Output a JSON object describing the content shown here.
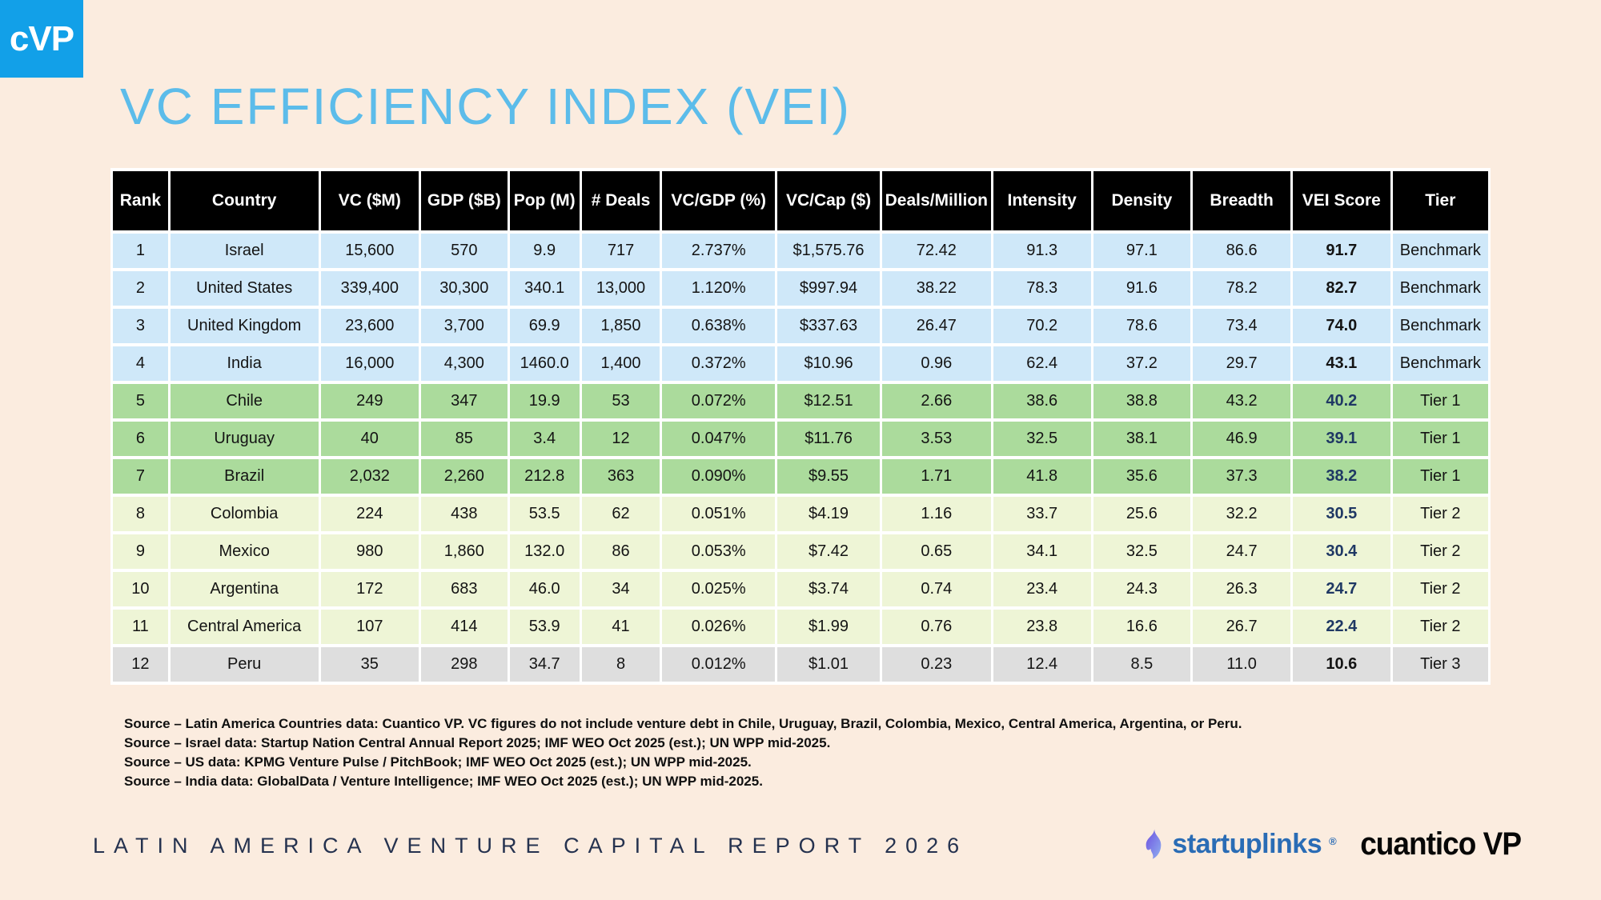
{
  "logo": {
    "text": "cVP"
  },
  "title": "VC EFFICIENCY INDEX (VEI)",
  "table": {
    "headers": [
      "Rank",
      "Country",
      "VC ($M)",
      "GDP ($B)",
      "Pop (M)",
      "# Deals",
      "VC/GDP (%)",
      "VC/Cap ($)",
      "Deals/Million",
      "Intensity",
      "Density",
      "Breadth",
      "VEI Score",
      "Tier"
    ],
    "column_keys": [
      "rank",
      "country",
      "vc-m",
      "gdp-b",
      "pop-m",
      "deals",
      "vc-gdp-pct",
      "vc-cap",
      "deals-million",
      "intensity",
      "density",
      "breadth",
      "vei-score",
      "tier"
    ],
    "rows": [
      [
        "1",
        "Israel",
        "15,600",
        "570",
        "9.9",
        "717",
        "2.737%",
        "$1,575.76",
        "72.42",
        "91.3",
        "97.1",
        "86.6",
        "91.7",
        "Benchmark"
      ],
      [
        "2",
        "United States",
        "339,400",
        "30,300",
        "340.1",
        "13,000",
        "1.120%",
        "$997.94",
        "38.22",
        "78.3",
        "91.6",
        "78.2",
        "82.7",
        "Benchmark"
      ],
      [
        "3",
        "United Kingdom",
        "23,600",
        "3,700",
        "69.9",
        "1,850",
        "0.638%",
        "$337.63",
        "26.47",
        "70.2",
        "78.6",
        "73.4",
        "74.0",
        "Benchmark"
      ],
      [
        "4",
        "India",
        "16,000",
        "4,300",
        "1460.0",
        "1,400",
        "0.372%",
        "$10.96",
        "0.96",
        "62.4",
        "37.2",
        "29.7",
        "43.1",
        "Benchmark"
      ],
      [
        "5",
        "Chile",
        "249",
        "347",
        "19.9",
        "53",
        "0.072%",
        "$12.51",
        "2.66",
        "38.6",
        "38.8",
        "43.2",
        "40.2",
        "Tier 1"
      ],
      [
        "6",
        "Uruguay",
        "40",
        "85",
        "3.4",
        "12",
        "0.047%",
        "$11.76",
        "3.53",
        "32.5",
        "38.1",
        "46.9",
        "39.1",
        "Tier 1"
      ],
      [
        "7",
        "Brazil",
        "2,032",
        "2,260",
        "212.8",
        "363",
        "0.090%",
        "$9.55",
        "1.71",
        "41.8",
        "35.6",
        "37.3",
        "38.2",
        "Tier 1"
      ],
      [
        "8",
        "Colombia",
        "224",
        "438",
        "53.5",
        "62",
        "0.051%",
        "$4.19",
        "1.16",
        "33.7",
        "25.6",
        "32.2",
        "30.5",
        "Tier 2"
      ],
      [
        "9",
        "Mexico",
        "980",
        "1,860",
        "132.0",
        "86",
        "0.053%",
        "$7.42",
        "0.65",
        "34.1",
        "32.5",
        "24.7",
        "30.4",
        "Tier 2"
      ],
      [
        "10",
        "Argentina",
        "172",
        "683",
        "46.0",
        "34",
        "0.025%",
        "$3.74",
        "0.74",
        "23.4",
        "24.3",
        "26.3",
        "24.7",
        "Tier 2"
      ],
      [
        "11",
        "Central America",
        "107",
        "414",
        "53.9",
        "41",
        "0.026%",
        "$1.99",
        "0.76",
        "23.8",
        "16.6",
        "26.7",
        "22.4",
        "Tier 2"
      ],
      [
        "12",
        "Peru",
        "35",
        "298",
        "34.7",
        "8",
        "0.012%",
        "$1.01",
        "0.23",
        "12.4",
        "8.5",
        "11.0",
        "10.6",
        "Tier 3"
      ]
    ],
    "tiers": [
      "Benchmark",
      "Tier 1",
      "Tier 2",
      "Tier 3"
    ]
  },
  "sources": [
    "Source – Latin America Countries data: Cuantico VP. VC figures do not include venture debt in Chile, Uruguay, Brazil, Colombia, Mexico, Central America, Argentina, or Peru.",
    "Source – Israel data: Startup Nation Central Annual Report 2025; IMF WEO Oct 2025 (est.); UN WPP mid-2025.",
    "Source – US data: KPMG Venture Pulse / PitchBook; IMF WEO Oct 2025 (est.); UN WPP mid-2025.",
    "Source – India data: GlobalData / Venture Intelligence; IMF WEO Oct 2025 (est.); UN WPP mid-2025."
  ],
  "footer": {
    "report_title": "LATIN AMERICA VENTURE CAPITAL REPORT 2026",
    "startuplinks": "startuplinks",
    "reg_mark": "®",
    "cuantico": "cuantico VP"
  },
  "icons": {
    "flame_icon": "startuplinks-flame"
  },
  "colors": {
    "background": "#fbecdf",
    "title_blue": "#5cbcea",
    "logo_blue": "#12a0e8",
    "header_bg": "#000000",
    "benchmark_row": "#cfe8f9",
    "tier1_row": "#abdb9c",
    "tier2_row": "#eef5d6",
    "tier3_row": "#dedede",
    "vei_navy": "#1f3864",
    "report_title_navy": "#25324f",
    "startuplinks_blue": "#2a6cb5",
    "flame_purple": "#6d4fe0",
    "flame_light": "#8fb0f0"
  }
}
